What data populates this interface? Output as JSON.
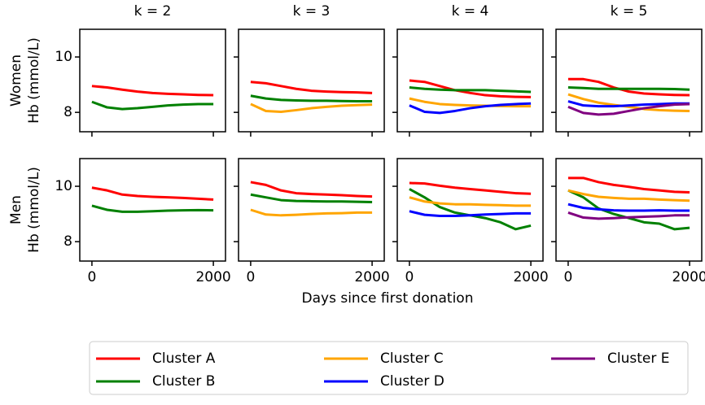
{
  "chart_data": {
    "type": "line",
    "columns": [
      "k = 2",
      "k = 3",
      "k = 4",
      "k = 5"
    ],
    "rows": [
      "Women",
      "Men"
    ],
    "ylabel": "Hb (mmol/L)",
    "xlabel": "Days since first donation",
    "x": [
      0,
      250,
      500,
      750,
      1000,
      1250,
      1500,
      1750,
      2000
    ],
    "xlim": [
      -200,
      2200
    ],
    "xticks": [
      0,
      2000
    ],
    "ylim": [
      7.3,
      11.0
    ],
    "yticks": [
      8,
      10
    ],
    "legend": [
      {
        "name": "Cluster A",
        "color": "#ff0000"
      },
      {
        "name": "Cluster B",
        "color": "#008000"
      },
      {
        "name": "Cluster C",
        "color": "#ffa500"
      },
      {
        "name": "Cluster D",
        "color": "#0000ff"
      },
      {
        "name": "Cluster E",
        "color": "#800080"
      }
    ],
    "panels": [
      {
        "series": [
          {
            "values": [
              8.95,
              8.9,
              8.82,
              8.75,
              8.7,
              8.67,
              8.65,
              8.63,
              8.62
            ]
          },
          {
            "values": [
              8.38,
              8.18,
              8.12,
              8.15,
              8.2,
              8.25,
              8.28,
              8.3,
              8.3
            ]
          }
        ]
      },
      {
        "series": [
          {
            "values": [
              9.1,
              9.05,
              8.95,
              8.85,
              8.78,
              8.75,
              8.73,
              8.72,
              8.7
            ]
          },
          {
            "values": [
              8.6,
              8.5,
              8.45,
              8.43,
              8.42,
              8.42,
              8.41,
              8.4,
              8.4
            ]
          },
          {
            "values": [
              8.3,
              8.05,
              8.02,
              8.08,
              8.15,
              8.2,
              8.24,
              8.26,
              8.28
            ]
          }
        ]
      },
      {
        "series": [
          {
            "values": [
              9.15,
              9.1,
              8.95,
              8.8,
              8.7,
              8.62,
              8.58,
              8.56,
              8.55
            ]
          },
          {
            "values": [
              8.9,
              8.85,
              8.82,
              8.8,
              8.8,
              8.8,
              8.78,
              8.76,
              8.74
            ]
          },
          {
            "values": [
              8.5,
              8.38,
              8.3,
              8.27,
              8.25,
              8.24,
              8.23,
              8.22,
              8.22
            ]
          },
          {
            "values": [
              8.25,
              8.02,
              7.98,
              8.05,
              8.15,
              8.22,
              8.27,
              8.3,
              8.32
            ]
          }
        ]
      },
      {
        "series": [
          {
            "values": [
              9.2,
              9.2,
              9.1,
              8.9,
              8.75,
              8.68,
              8.65,
              8.63,
              8.62
            ]
          },
          {
            "values": [
              8.9,
              8.88,
              8.85,
              8.85,
              8.85,
              8.85,
              8.85,
              8.84,
              8.82
            ]
          },
          {
            "values": [
              8.65,
              8.48,
              8.35,
              8.27,
              8.2,
              8.12,
              8.08,
              8.06,
              8.05
            ]
          },
          {
            "values": [
              8.4,
              8.25,
              8.22,
              8.22,
              8.25,
              8.28,
              8.3,
              8.32,
              8.32
            ]
          },
          {
            "values": [
              8.2,
              7.98,
              7.92,
              7.95,
              8.05,
              8.15,
              8.22,
              8.28,
              8.3
            ]
          }
        ]
      },
      {
        "series": [
          {
            "values": [
              9.95,
              9.85,
              9.7,
              9.65,
              9.62,
              9.6,
              9.58,
              9.55,
              9.52
            ]
          },
          {
            "values": [
              9.3,
              9.15,
              9.08,
              9.08,
              9.1,
              9.12,
              9.13,
              9.14,
              9.13
            ]
          }
        ]
      },
      {
        "series": [
          {
            "values": [
              10.15,
              10.05,
              9.85,
              9.75,
              9.72,
              9.7,
              9.68,
              9.65,
              9.63
            ]
          },
          {
            "values": [
              9.7,
              9.6,
              9.5,
              9.47,
              9.46,
              9.45,
              9.45,
              9.44,
              9.43
            ]
          },
          {
            "values": [
              9.15,
              8.98,
              8.95,
              8.97,
              9.0,
              9.02,
              9.03,
              9.05,
              9.05
            ]
          }
        ]
      },
      {
        "series": [
          {
            "values": [
              10.12,
              10.1,
              10.02,
              9.95,
              9.9,
              9.85,
              9.8,
              9.75,
              9.73
            ]
          },
          {
            "values": [
              9.9,
              9.6,
              9.25,
              9.05,
              8.95,
              8.85,
              8.7,
              8.45,
              8.58
            ]
          },
          {
            "values": [
              9.6,
              9.45,
              9.38,
              9.35,
              9.35,
              9.33,
              9.32,
              9.3,
              9.3
            ]
          },
          {
            "values": [
              9.1,
              8.97,
              8.93,
              8.93,
              8.95,
              8.98,
              9.0,
              9.02,
              9.02
            ]
          }
        ]
      },
      {
        "series": [
          {
            "values": [
              10.3,
              10.3,
              10.15,
              10.05,
              9.98,
              9.9,
              9.85,
              9.8,
              9.78
            ]
          },
          {
            "values": [
              9.85,
              9.6,
              9.2,
              9.0,
              8.85,
              8.7,
              8.65,
              8.45,
              8.5
            ]
          },
          {
            "values": [
              9.85,
              9.72,
              9.62,
              9.58,
              9.55,
              9.55,
              9.52,
              9.5,
              9.48
            ]
          },
          {
            "values": [
              9.35,
              9.22,
              9.17,
              9.13,
              9.12,
              9.12,
              9.13,
              9.12,
              9.12
            ]
          },
          {
            "values": [
              9.05,
              8.87,
              8.83,
              8.85,
              8.88,
              8.9,
              8.92,
              8.95,
              8.95
            ]
          }
        ]
      }
    ]
  }
}
